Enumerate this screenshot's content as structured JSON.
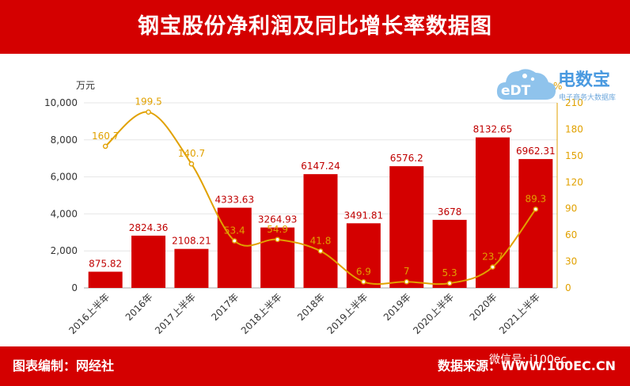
{
  "header": {
    "title": "钢宝股份净利润及同比增长率数据图"
  },
  "footer": {
    "left": "图表编制：网经社",
    "right": "数据来源：WWW.100EC.CN",
    "wechat": "微信号: i100ec"
  },
  "logo": {
    "mark": "eDT",
    "name": "电数宝",
    "tagline": "电子商务大数据库"
  },
  "colors": {
    "bar": "#d40000",
    "line": "#e1a100",
    "header": "#d40000"
  },
  "chart_data": {
    "type": "bar",
    "categories": [
      "2016上半年",
      "2016年",
      "2017上半年",
      "2017年",
      "2018上半年",
      "2018年",
      "2019上半年",
      "2019年",
      "2020上半年",
      "2020年",
      "2021上半年"
    ],
    "series": [
      {
        "values": [
          875.82,
          2824.36,
          2108.21,
          4333.63,
          3264.93,
          6147.24,
          3491.81,
          6576.2,
          3678,
          8132.65,
          6962.31
        ]
      },
      {
        "type": "line",
        "axis": "right",
        "values": [
          160.7,
          199.5,
          140.7,
          53.4,
          54.9,
          41.8,
          6.9,
          7,
          5.3,
          23.7,
          89.3
        ]
      }
    ],
    "value_labels": [
      "875.82",
      "2824.36",
      "2108.21",
      "4333.63",
      "3264.93",
      "6147.24",
      "3491.81",
      "6576.2",
      "3678",
      "8132.65",
      "6962.31"
    ],
    "pct_labels": [
      "160.7",
      "199.5",
      "140.7",
      "53.4",
      "54.9",
      "41.8",
      "6.9",
      "7",
      "5.3",
      "23.7",
      "89.3"
    ],
    "ylabel": "万元",
    "y2label": "%",
    "ylim": [
      0,
      10000
    ],
    "y2lim": [
      0,
      210
    ],
    "yticks": [
      "0",
      "2,000",
      "4,000",
      "6,000",
      "8,000",
      "10,000"
    ],
    "y2ticks": [
      "0",
      "30",
      "60",
      "90",
      "120",
      "150",
      "180",
      "210"
    ],
    "grid": true
  }
}
